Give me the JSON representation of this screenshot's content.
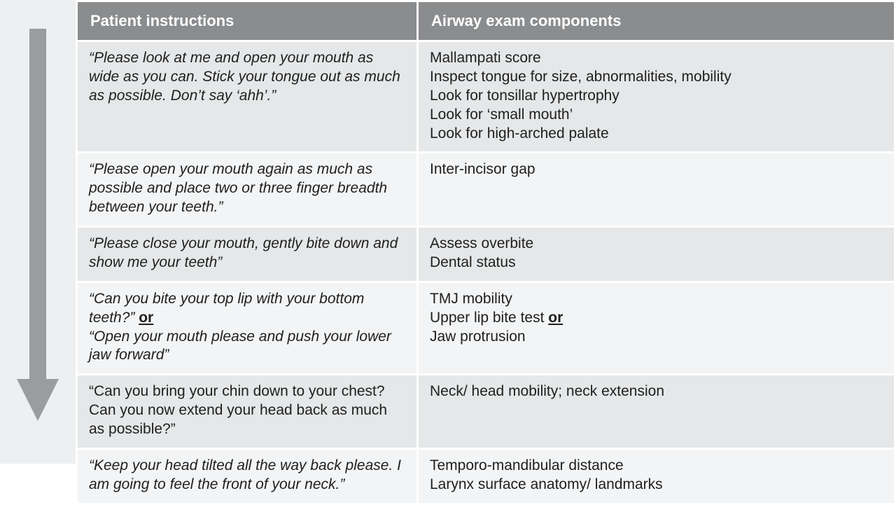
{
  "arrow": {
    "fill": "#9a9c9e",
    "shaft_width": 24,
    "head_width": 60,
    "total_height": 560
  },
  "table": {
    "header_bg": "#8a8c8e",
    "header_fg": "#ffffff",
    "row_light_bg": "#e5e7e8",
    "row_pale_bg": "#f3f4f5",
    "border_color": "#ffffff",
    "font_size_header": 22,
    "font_size_cell": 21,
    "columns": [
      {
        "key": "instruction",
        "label": "Patient instructions"
      },
      {
        "key": "components",
        "label": "Airway  exam components"
      }
    ],
    "rows": [
      {
        "shade": "light",
        "instruction_html": "“Please look at me and open your mouth as wide as you can. Stick your tongue out as much as possible. Don’t say ‘ahh’.”",
        "instruction_style": "italic",
        "components_lines": [
          "Mallampati score",
          "Inspect tongue for size, abnormalities, mobility",
          "Look for tonsillar hypertrophy",
          "Look for ‘small mouth’",
          "Look for high-arched palate"
        ]
      },
      {
        "shade": "pale",
        "instruction_html": "“Please open your mouth again as much as possible and place two or three finger breadth between your teeth.”",
        "instruction_style": "italic",
        "components_lines": [
          "Inter-incisor gap"
        ]
      },
      {
        "shade": "light",
        "instruction_html": "“Please close your mouth, gently bite down and show me your teeth”",
        "instruction_style": "italic",
        "components_lines": [
          "Assess overbite",
          "Dental status"
        ]
      },
      {
        "shade": "pale",
        "instruction_parts": [
          {
            "text": "“Can you bite your top lip with your bottom teeth?” ",
            "italic": true
          },
          {
            "text": "or",
            "underline_bold": true
          },
          {
            "text": "\n",
            "italic": false
          },
          {
            "text": "“Open your mouth please and push your lower jaw forward”",
            "italic": true
          }
        ],
        "components_parts": [
          {
            "text": "TMJ mobility"
          },
          {
            "br": true
          },
          {
            "text": "Upper lip bite test "
          },
          {
            "text": "or",
            "underline_bold": true
          },
          {
            "br": true
          },
          {
            "text": "Jaw protrusion"
          }
        ]
      },
      {
        "shade": "light",
        "instruction_html": "“Can you bring your chin down to your chest? Can you now extend your head back as much as possible?”",
        "instruction_style": "plain",
        "components_lines": [
          "Neck/ head mobility; neck extension"
        ]
      },
      {
        "shade": "pale",
        "instruction_html": "“Keep your head tilted all the way back please. I am going to feel the front of your neck.”",
        "instruction_style": "italic",
        "components_lines": [
          "Temporo-mandibular distance",
          "Larynx surface anatomy/ landmarks"
        ]
      }
    ]
  }
}
